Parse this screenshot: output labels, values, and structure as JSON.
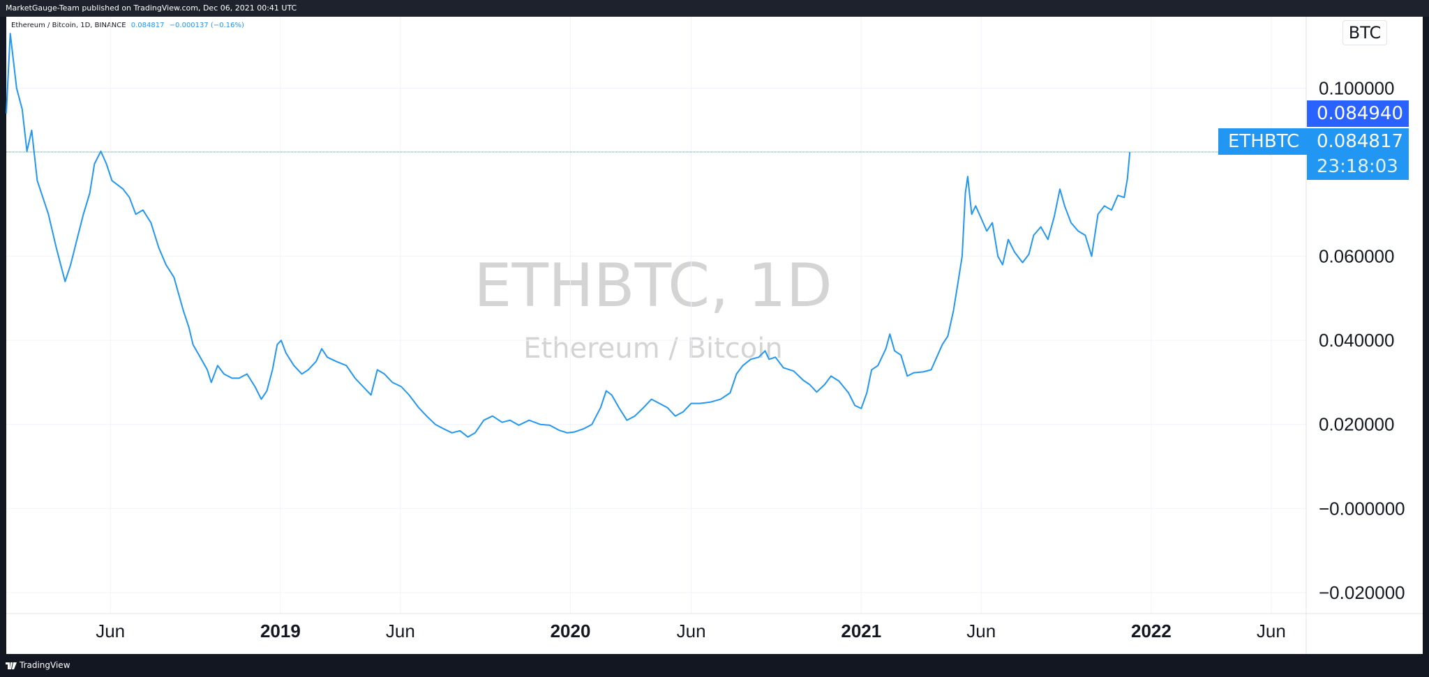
{
  "header": {
    "published": "MarketGauge-Team published on TradingView.com, Dec 06, 2021 00:41 UTC"
  },
  "footer": {
    "brand": "TradingView"
  },
  "legend": {
    "symbol": "Ethereum / Bitcoin, 1D, BINANCE",
    "value": "0.084817",
    "change": "−0.000137 (−0.16%)"
  },
  "watermark": {
    "symbol": "ETHBTC, 1D",
    "description": "Ethereum / Bitcoin"
  },
  "currency": "BTC",
  "price_tags": {
    "high": "0.084940",
    "symbol": "ETHBTC",
    "last": "0.084817",
    "countdown": "23:18:03"
  },
  "colors": {
    "line": "#2196f3",
    "tag_last": "#2196f3",
    "tag_high": "#2962ff"
  },
  "chart_data": {
    "type": "line",
    "title": "ETHBTC, 1D",
    "ylim": [
      -0.025,
      0.117
    ],
    "y_ticks": [
      "0.100000",
      "0.060000",
      "0.040000",
      "0.020000",
      "−0.000000",
      "−0.020000"
    ],
    "y_tick_values": [
      0.1,
      0.06,
      0.04,
      0.02,
      0.0,
      -0.02
    ],
    "x_range": [
      "2018-01-21",
      "2022-07-15"
    ],
    "x_ticks": [
      {
        "label": "Jun",
        "date": "2018-06-01",
        "bold": false
      },
      {
        "label": "2019",
        "date": "2019-01-01",
        "bold": true
      },
      {
        "label": "Jun",
        "date": "2019-06-01",
        "bold": false
      },
      {
        "label": "2020",
        "date": "2020-01-01",
        "bold": true
      },
      {
        "label": "Jun",
        "date": "2020-06-01",
        "bold": false
      },
      {
        "label": "2021",
        "date": "2021-01-01",
        "bold": true
      },
      {
        "label": "Jun",
        "date": "2021-06-01",
        "bold": false
      },
      {
        "label": "2022",
        "date": "2022-01-01",
        "bold": true
      },
      {
        "label": "Jun",
        "date": "2022-06-01",
        "bold": false
      }
    ],
    "series": [
      {
        "points": [
          [
            "2018-01-21",
            0.094
          ],
          [
            "2018-01-26",
            0.113
          ],
          [
            "2018-02-03",
            0.1
          ],
          [
            "2018-02-10",
            0.095
          ],
          [
            "2018-02-16",
            0.085
          ],
          [
            "2018-02-22",
            0.09
          ],
          [
            "2018-03-01",
            0.078
          ],
          [
            "2018-03-08",
            0.074
          ],
          [
            "2018-03-15",
            0.07
          ],
          [
            "2018-03-25",
            0.062
          ],
          [
            "2018-04-05",
            0.054
          ],
          [
            "2018-04-12",
            0.058
          ],
          [
            "2018-04-20",
            0.064
          ],
          [
            "2018-04-28",
            0.07
          ],
          [
            "2018-05-06",
            0.075
          ],
          [
            "2018-05-12",
            0.082
          ],
          [
            "2018-05-20",
            0.085
          ],
          [
            "2018-05-27",
            0.082
          ],
          [
            "2018-06-03",
            0.078
          ],
          [
            "2018-06-10",
            0.077
          ],
          [
            "2018-06-17",
            0.076
          ],
          [
            "2018-06-25",
            0.074
          ],
          [
            "2018-07-03",
            0.07
          ],
          [
            "2018-07-12",
            0.071
          ],
          [
            "2018-07-22",
            0.068
          ],
          [
            "2018-08-01",
            0.062
          ],
          [
            "2018-08-10",
            0.058
          ],
          [
            "2018-08-20",
            0.055
          ],
          [
            "2018-09-01",
            0.047
          ],
          [
            "2018-09-08",
            0.043
          ],
          [
            "2018-09-13",
            0.039
          ],
          [
            "2018-09-22",
            0.036
          ],
          [
            "2018-10-01",
            0.033
          ],
          [
            "2018-10-06",
            0.03
          ],
          [
            "2018-10-14",
            0.034
          ],
          [
            "2018-10-22",
            0.032
          ],
          [
            "2018-11-01",
            0.031
          ],
          [
            "2018-11-10",
            0.031
          ],
          [
            "2018-11-20",
            0.032
          ],
          [
            "2018-11-30",
            0.029
          ],
          [
            "2018-12-08",
            0.026
          ],
          [
            "2018-12-15",
            0.028
          ],
          [
            "2018-12-22",
            0.033
          ],
          [
            "2018-12-28",
            0.039
          ],
          [
            "2019-01-02",
            0.04
          ],
          [
            "2019-01-08",
            0.037
          ],
          [
            "2019-01-18",
            0.034
          ],
          [
            "2019-01-28",
            0.032
          ],
          [
            "2019-02-05",
            0.033
          ],
          [
            "2019-02-15",
            0.035
          ],
          [
            "2019-02-22",
            0.038
          ],
          [
            "2019-03-01",
            0.036
          ],
          [
            "2019-03-12",
            0.035
          ],
          [
            "2019-03-25",
            0.034
          ],
          [
            "2019-04-05",
            0.031
          ],
          [
            "2019-04-15",
            0.029
          ],
          [
            "2019-04-25",
            0.027
          ],
          [
            "2019-05-03",
            0.033
          ],
          [
            "2019-05-12",
            0.032
          ],
          [
            "2019-05-22",
            0.03
          ],
          [
            "2019-06-02",
            0.029
          ],
          [
            "2019-06-12",
            0.027
          ],
          [
            "2019-06-24",
            0.024
          ],
          [
            "2019-07-04",
            0.022
          ],
          [
            "2019-07-15",
            0.02
          ],
          [
            "2019-07-25",
            0.019
          ],
          [
            "2019-08-05",
            0.018
          ],
          [
            "2019-08-15",
            0.0185
          ],
          [
            "2019-08-25",
            0.017
          ],
          [
            "2019-09-03",
            0.018
          ],
          [
            "2019-09-14",
            0.021
          ],
          [
            "2019-09-25",
            0.022
          ],
          [
            "2019-10-07",
            0.0205
          ],
          [
            "2019-10-17",
            0.021
          ],
          [
            "2019-10-28",
            0.0198
          ],
          [
            "2019-11-10",
            0.021
          ],
          [
            "2019-11-24",
            0.02
          ],
          [
            "2019-12-06",
            0.0198
          ],
          [
            "2019-12-18",
            0.0186
          ],
          [
            "2019-12-28",
            0.018
          ],
          [
            "2020-01-06",
            0.0182
          ],
          [
            "2020-01-18",
            0.019
          ],
          [
            "2020-01-28",
            0.02
          ],
          [
            "2020-02-08",
            0.024
          ],
          [
            "2020-02-15",
            0.028
          ],
          [
            "2020-02-22",
            0.027
          ],
          [
            "2020-03-02",
            0.024
          ],
          [
            "2020-03-12",
            0.021
          ],
          [
            "2020-03-22",
            0.022
          ],
          [
            "2020-04-02",
            0.024
          ],
          [
            "2020-04-12",
            0.026
          ],
          [
            "2020-04-22",
            0.025
          ],
          [
            "2020-05-02",
            0.024
          ],
          [
            "2020-05-12",
            0.022
          ],
          [
            "2020-05-22",
            0.023
          ],
          [
            "2020-06-01",
            0.025
          ],
          [
            "2020-06-12",
            0.025
          ],
          [
            "2020-06-25",
            0.0253
          ],
          [
            "2020-07-08",
            0.026
          ],
          [
            "2020-07-20",
            0.0275
          ],
          [
            "2020-07-28",
            0.032
          ],
          [
            "2020-08-05",
            0.034
          ],
          [
            "2020-08-15",
            0.0355
          ],
          [
            "2020-08-25",
            0.036
          ],
          [
            "2020-09-02",
            0.0375
          ],
          [
            "2020-09-07",
            0.0355
          ],
          [
            "2020-09-15",
            0.036
          ],
          [
            "2020-09-25",
            0.0335
          ],
          [
            "2020-10-08",
            0.0327
          ],
          [
            "2020-10-20",
            0.0305
          ],
          [
            "2020-10-28",
            0.0295
          ],
          [
            "2020-11-06",
            0.0277
          ],
          [
            "2020-11-16",
            0.0295
          ],
          [
            "2020-11-24",
            0.0315
          ],
          [
            "2020-12-04",
            0.0303
          ],
          [
            "2020-12-16",
            0.0275
          ],
          [
            "2020-12-24",
            0.0245
          ],
          [
            "2021-01-01",
            0.0238
          ],
          [
            "2021-01-08",
            0.0275
          ],
          [
            "2021-01-14",
            0.033
          ],
          [
            "2021-01-22",
            0.034
          ],
          [
            "2021-02-01",
            0.038
          ],
          [
            "2021-02-06",
            0.0415
          ],
          [
            "2021-02-12",
            0.0375
          ],
          [
            "2021-02-20",
            0.0365
          ],
          [
            "2021-02-28",
            0.0315
          ],
          [
            "2021-03-08",
            0.0323
          ],
          [
            "2021-03-20",
            0.0325
          ],
          [
            "2021-03-30",
            0.033
          ],
          [
            "2021-04-06",
            0.036
          ],
          [
            "2021-04-13",
            0.039
          ],
          [
            "2021-04-20",
            0.041
          ],
          [
            "2021-04-27",
            0.047
          ],
          [
            "2021-05-03",
            0.054
          ],
          [
            "2021-05-08",
            0.06
          ],
          [
            "2021-05-12",
            0.075
          ],
          [
            "2021-05-15",
            0.079
          ],
          [
            "2021-05-20",
            0.07
          ],
          [
            "2021-05-25",
            0.072
          ],
          [
            "2021-06-01",
            0.069
          ],
          [
            "2021-06-08",
            0.066
          ],
          [
            "2021-06-15",
            0.068
          ],
          [
            "2021-06-22",
            0.06
          ],
          [
            "2021-06-28",
            0.058
          ],
          [
            "2021-07-05",
            0.064
          ],
          [
            "2021-07-13",
            0.061
          ],
          [
            "2021-07-23",
            0.0585
          ],
          [
            "2021-07-31",
            0.0605
          ],
          [
            "2021-08-06",
            0.065
          ],
          [
            "2021-08-15",
            0.067
          ],
          [
            "2021-08-24",
            0.064
          ],
          [
            "2021-09-01",
            0.0695
          ],
          [
            "2021-09-08",
            0.076
          ],
          [
            "2021-09-14",
            0.072
          ],
          [
            "2021-09-22",
            0.068
          ],
          [
            "2021-10-01",
            0.066
          ],
          [
            "2021-10-10",
            0.065
          ],
          [
            "2021-10-18",
            0.06
          ],
          [
            "2021-10-26",
            0.07
          ],
          [
            "2021-11-03",
            0.072
          ],
          [
            "2021-11-12",
            0.071
          ],
          [
            "2021-11-20",
            0.0745
          ],
          [
            "2021-11-28",
            0.074
          ],
          [
            "2021-12-02",
            0.0785
          ],
          [
            "2021-12-05",
            0.0848
          ]
        ]
      }
    ],
    "horizontal_line": 0.084817
  }
}
